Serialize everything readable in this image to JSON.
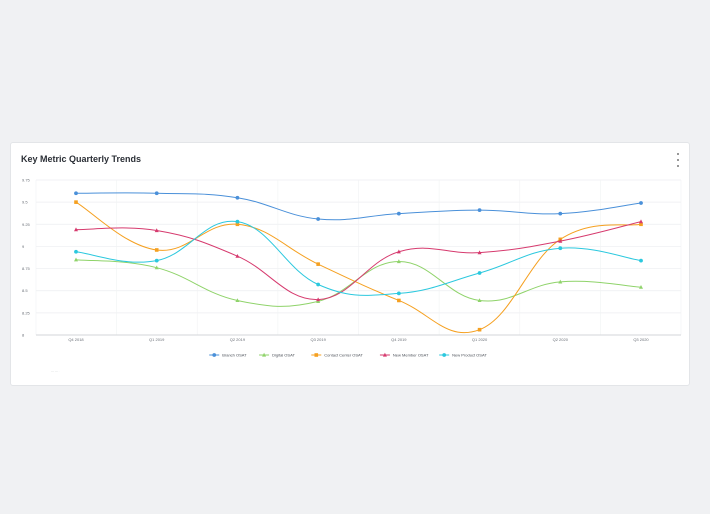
{
  "card": {
    "title": "Key Metric Quarterly Trends",
    "menu_icon": "more-vertical-icon",
    "footnote": "— — ."
  },
  "chart_data": {
    "type": "line",
    "title": "Key Metric Quarterly Trends",
    "xlabel": "",
    "ylabel": "",
    "categories": [
      "Q4 2018",
      "Q1 2019",
      "Q2 2019",
      "Q3 2019",
      "Q4 2019",
      "Q1 2020",
      "Q2 2020",
      "Q3 2020"
    ],
    "ylim": [
      8,
      9.75
    ],
    "yticks": [
      "9.75",
      "9.5",
      "9.25",
      "9",
      "8.75",
      "8.5",
      "8.25",
      "8"
    ],
    "grid": true,
    "legend_position": "bottom",
    "series": [
      {
        "name": "Branch OSAT",
        "color": "#4a90d9",
        "marker": "circle",
        "values": [
          9.6,
          9.6,
          9.55,
          9.31,
          9.37,
          9.41,
          9.37,
          9.49
        ]
      },
      {
        "name": "Digital OSAT",
        "color": "#8fd36a",
        "marker": "triangle",
        "values": [
          8.85,
          8.76,
          8.39,
          8.38,
          8.83,
          8.39,
          8.6,
          8.54
        ]
      },
      {
        "name": "Contact Center OSAT",
        "color": "#f5a020",
        "marker": "square",
        "values": [
          9.5,
          8.96,
          9.25,
          8.8,
          8.39,
          8.06,
          9.08,
          9.25
        ]
      },
      {
        "name": "New Member OSAT",
        "color": "#d63a6e",
        "marker": "triangle",
        "values": [
          9.19,
          9.18,
          8.89,
          8.4,
          8.94,
          8.93,
          9.06,
          9.28
        ]
      },
      {
        "name": "New Product OSAT",
        "color": "#2bc8de",
        "marker": "circle",
        "values": [
          8.94,
          8.84,
          9.28,
          8.57,
          8.47,
          8.7,
          8.98,
          8.84
        ]
      }
    ]
  }
}
